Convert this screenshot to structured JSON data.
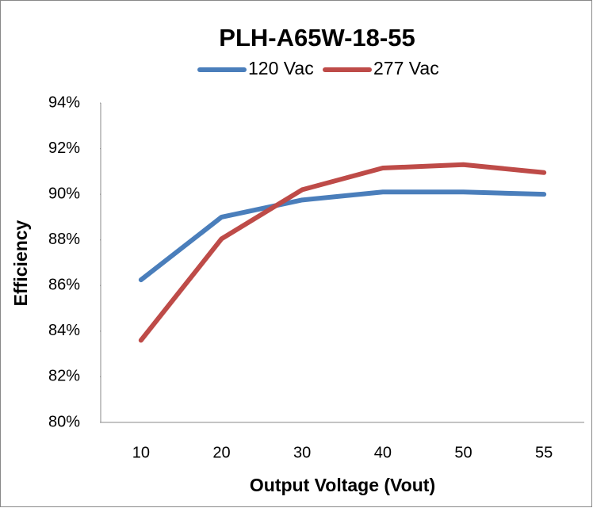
{
  "chart_data": {
    "type": "line",
    "title": "PLH-A65W-18-55",
    "x_label": "Output Voltage (Vout)",
    "y_label": "Efficiency",
    "categories": [
      "10",
      "20",
      "30",
      "40",
      "50",
      "55"
    ],
    "series": [
      {
        "name": "120 Vac",
        "color": "#4a7ebb",
        "values": [
          86.25,
          89.0,
          89.75,
          90.1,
          90.1,
          90.0
        ]
      },
      {
        "name": "277 Vac",
        "color": "#be4b48",
        "values": [
          83.6,
          88.05,
          90.2,
          91.15,
          91.3,
          90.95
        ]
      }
    ],
    "ylim": [
      80,
      94
    ],
    "yticks": [
      {
        "value": 80,
        "label": "80%"
      },
      {
        "value": 82,
        "label": "82%"
      },
      {
        "value": 84,
        "label": "84%"
      },
      {
        "value": 86,
        "label": "86%"
      },
      {
        "value": 88,
        "label": "88%"
      },
      {
        "value": 90,
        "label": "90%"
      },
      {
        "value": 92,
        "label": "92%"
      },
      {
        "value": 94,
        "label": "94%"
      }
    ],
    "grid": false,
    "legend": "top"
  }
}
